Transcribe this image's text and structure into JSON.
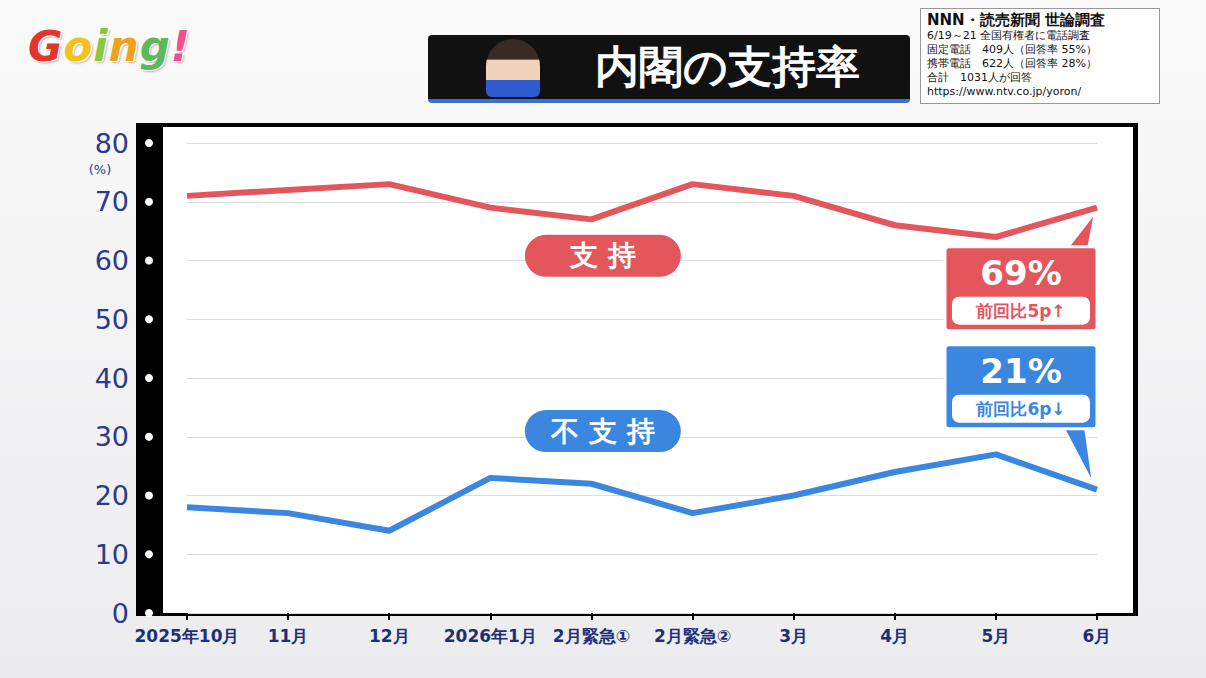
{
  "header": {
    "logo": "Going!",
    "title": "内閣の支持率",
    "source": {
      "title": "NNN・読売新聞 世論調査",
      "lines": [
        "6/19～21 全国有権者に電話調査",
        "固定電話　409人（回答率 55%）",
        "携帯電話　622人（回答率 28%）",
        "合計　1031人が回答",
        "https://www.ntv.co.jp/yoron/"
      ]
    }
  },
  "chart_data": {
    "type": "line",
    "categories": [
      "2025年10月",
      "11月",
      "12月",
      "2026年1月",
      "2月緊急①",
      "2月緊急②",
      "3月",
      "4月",
      "5月",
      "6月"
    ],
    "series": [
      {
        "name": "支持",
        "color": "#e3575c",
        "values": [
          71,
          72,
          73,
          69,
          67,
          73,
          71,
          66,
          64,
          69
        ],
        "annotation": {
          "text": "69%",
          "note": "前回比5p↑"
        }
      },
      {
        "name": "不支持",
        "color": "#3b87e0",
        "values": [
          18,
          17,
          14,
          23,
          22,
          17,
          20,
          24,
          27,
          21
        ],
        "annotation": {
          "text": "21%",
          "note": "前回比6p↓"
        }
      }
    ],
    "ylim": [
      0,
      80
    ],
    "yticks": [
      0,
      10,
      20,
      30,
      40,
      50,
      60,
      70,
      80
    ],
    "ylabel": "(%)",
    "grid": true
  }
}
